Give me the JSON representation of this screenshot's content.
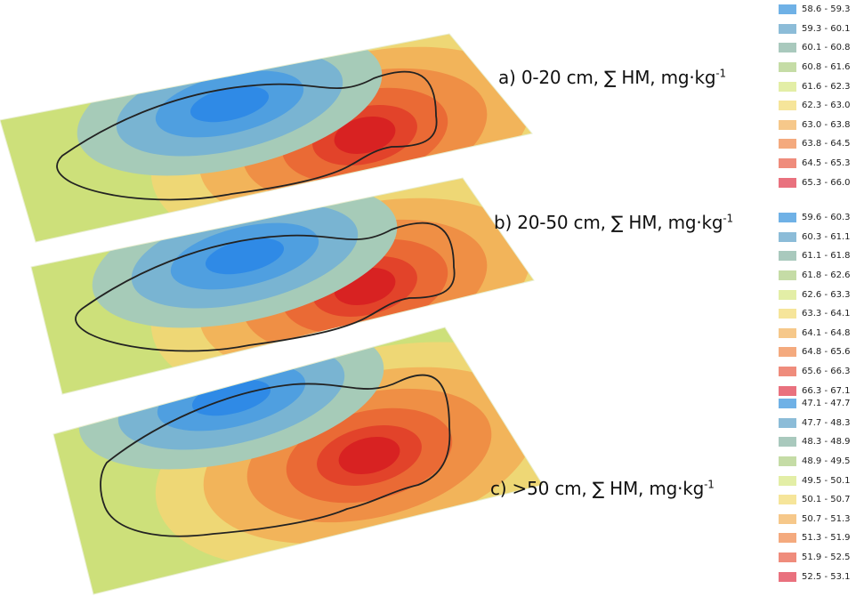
{
  "layers": [
    {
      "id": "a",
      "prefix": "a) 0-20 cm, ∑ HM, mg·kg",
      "exponent": "-1",
      "legend": [
        "58.6 - 59.3",
        "59.3 - 60.1",
        "60.1 - 60.8",
        "60.8 - 61.6",
        "61.6 - 62.3",
        "62.3 - 63.0",
        "63.0 - 63.8",
        "63.8 - 64.5",
        "64.5 - 65.3",
        "65.3 - 66.0"
      ]
    },
    {
      "id": "b",
      "prefix": "b) 20-50 cm, ∑ HM, mg·kg",
      "exponent": "-1",
      "legend": [
        "59.6 - 60.3",
        "60.3 - 61.1",
        "61.1 - 61.8",
        "61.8 - 62.6",
        "62.6 - 63.3",
        "63.3 - 64.1",
        "64.1 - 64.8",
        "64.8 - 65.6",
        "65.6 - 66.3",
        "66.3 - 67.1"
      ]
    },
    {
      "id": "c",
      "prefix": "c) >50 cm, ∑ HM, mg·kg",
      "exponent": "-1",
      "legend": [
        "47.1 - 47.7",
        "47.7 - 48.3",
        "48.3 - 48.9",
        "48.9 - 49.5",
        "49.5 - 50.1",
        "50.1 - 50.7",
        "50.7 - 51.3",
        "51.3 - 51.9",
        "51.9 - 52.5",
        "52.5 - 53.1"
      ]
    }
  ],
  "legend_colors": [
    "#6fb1e6",
    "#8cbcd8",
    "#a9c9bd",
    "#c5dca6",
    "#e3eea6",
    "#f6e59a",
    "#f6c88a",
    "#f4aa7e",
    "#ef8c7c",
    "#e9717e"
  ],
  "map_colors": {
    "base": "#cde07a",
    "blue_rings": [
      "#a6cbb8",
      "#79b4d2",
      "#4f9fe0",
      "#2f8ae6"
    ],
    "warm_rings": [
      "#eed775",
      "#f2b45a",
      "#ef8f45",
      "#ea6a35",
      "#e2432a",
      "#d82222"
    ],
    "outline": "#222222"
  }
}
